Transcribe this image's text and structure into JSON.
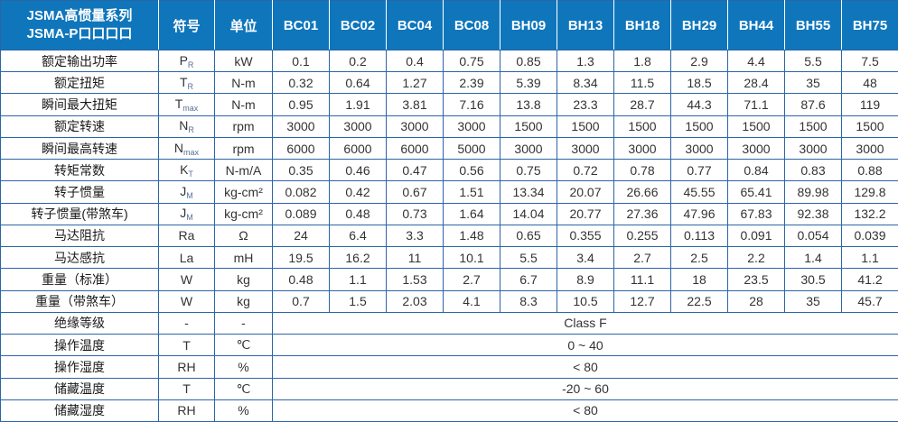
{
  "header": {
    "title_line1": "JSMA高惯量系列",
    "title_line2": "JSMA-P口口口口",
    "symbol_col": "符号",
    "unit_col": "单位",
    "models": [
      "BC01",
      "BC02",
      "BC04",
      "BC08",
      "BH09",
      "BH13",
      "BH18",
      "BH29",
      "BH44",
      "BH55",
      "BH75"
    ]
  },
  "colors": {
    "header_bg": "#0F76BC",
    "border": "#2B65A5",
    "header_text": "#FFFFFF",
    "body_text": "#333333"
  },
  "rows": [
    {
      "label": "额定输出功率",
      "symbol": {
        "base": "P",
        "sub": "R"
      },
      "unit": "kW",
      "values": [
        "0.1",
        "0.2",
        "0.4",
        "0.75",
        "0.85",
        "1.3",
        "1.8",
        "2.9",
        "4.4",
        "5.5",
        "7.5"
      ]
    },
    {
      "label": "额定扭矩",
      "symbol": {
        "base": "T",
        "sub": "R"
      },
      "unit": "N-m",
      "values": [
        "0.32",
        "0.64",
        "1.27",
        "2.39",
        "5.39",
        "8.34",
        "11.5",
        "18.5",
        "28.4",
        "35",
        "48"
      ]
    },
    {
      "label": "瞬间最大扭矩",
      "symbol": {
        "base": "T",
        "sub": "max"
      },
      "unit": "N-m",
      "values": [
        "0.95",
        "1.91",
        "3.81",
        "7.16",
        "13.8",
        "23.3",
        "28.7",
        "44.3",
        "71.1",
        "87.6",
        "119"
      ]
    },
    {
      "label": "额定转速",
      "symbol": {
        "base": "N",
        "sub": "R"
      },
      "unit": "rpm",
      "values": [
        "3000",
        "3000",
        "3000",
        "3000",
        "1500",
        "1500",
        "1500",
        "1500",
        "1500",
        "1500",
        "1500"
      ]
    },
    {
      "label": "瞬间最高转速",
      "symbol": {
        "base": "N",
        "sub": "max"
      },
      "unit": "rpm",
      "values": [
        "6000",
        "6000",
        "6000",
        "5000",
        "3000",
        "3000",
        "3000",
        "3000",
        "3000",
        "3000",
        "3000"
      ]
    },
    {
      "label": "转矩常数",
      "symbol": {
        "base": "K",
        "sub": "T"
      },
      "unit": "N-m/A",
      "values": [
        "0.35",
        "0.46",
        "0.47",
        "0.56",
        "0.75",
        "0.72",
        "0.78",
        "0.77",
        "0.84",
        "0.83",
        "0.88"
      ]
    },
    {
      "label": "转子惯量",
      "symbol": {
        "base": "J",
        "sub": "M"
      },
      "unit": "kg-cm²",
      "values": [
        "0.082",
        "0.42",
        "0.67",
        "1.51",
        "13.34",
        "20.07",
        "26.66",
        "45.55",
        "65.41",
        "89.98",
        "129.8"
      ]
    },
    {
      "label": "转子惯量(带煞车)",
      "symbol": {
        "base": "J",
        "sub": "M"
      },
      "unit": "kg-cm²",
      "values": [
        "0.089",
        "0.48",
        "0.73",
        "1.64",
        "14.04",
        "20.77",
        "27.36",
        "47.96",
        "67.83",
        "92.38",
        "132.2"
      ]
    },
    {
      "label": "马达阻抗",
      "symbol": {
        "base": "Ra",
        "sub": ""
      },
      "unit": "Ω",
      "values": [
        "24",
        "6.4",
        "3.3",
        "1.48",
        "0.65",
        "0.355",
        "0.255",
        "0.113",
        "0.091",
        "0.054",
        "0.039"
      ]
    },
    {
      "label": "马达感抗",
      "symbol": {
        "base": "La",
        "sub": ""
      },
      "unit": "mH",
      "values": [
        "19.5",
        "16.2",
        "11",
        "10.1",
        "5.5",
        "3.4",
        "2.7",
        "2.5",
        "2.2",
        "1.4",
        "1.1"
      ]
    },
    {
      "label": "重量（标准）",
      "symbol": {
        "base": "W",
        "sub": ""
      },
      "unit": "kg",
      "values": [
        "0.48",
        "1.1",
        "1.53",
        "2.7",
        "6.7",
        "8.9",
        "11.1",
        "18",
        "23.5",
        "30.5",
        "41.2"
      ]
    },
    {
      "label": "重量（带煞车）",
      "symbol": {
        "base": "W",
        "sub": ""
      },
      "unit": "kg",
      "values": [
        "0.7",
        "1.5",
        "2.03",
        "4.1",
        "8.3",
        "10.5",
        "12.7",
        "22.5",
        "28",
        "35",
        "45.7"
      ]
    },
    {
      "label": "绝缘等级",
      "symbol": {
        "base": "-",
        "sub": ""
      },
      "unit": "-",
      "merged_value": "Class F"
    },
    {
      "label": "操作温度",
      "symbol": {
        "base": "T",
        "sub": ""
      },
      "unit": "℃",
      "merged_value": "0 ~ 40"
    },
    {
      "label": "操作湿度",
      "symbol": {
        "base": "RH",
        "sub": ""
      },
      "unit": "%",
      "merged_value": "< 80"
    },
    {
      "label": "储藏温度",
      "symbol": {
        "base": "T",
        "sub": ""
      },
      "unit": "℃",
      "merged_value": "-20 ~ 60"
    },
    {
      "label": "储藏湿度",
      "symbol": {
        "base": "RH",
        "sub": ""
      },
      "unit": "%",
      "merged_value": "< 80"
    }
  ]
}
